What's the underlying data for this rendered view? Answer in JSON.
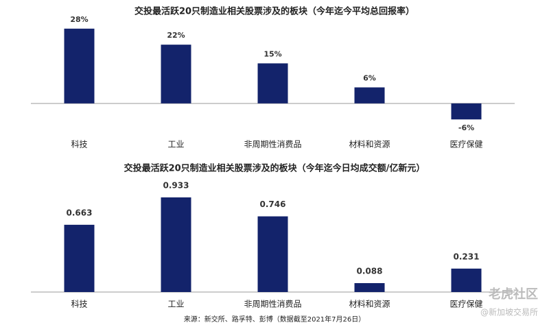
{
  "chart_data": [
    {
      "type": "bar",
      "title": "交投最活跃20只制造业相关股票涉及的板块（今年迄今平均总回报率）",
      "categories": [
        "科技",
        "工业",
        "非周期性消费品",
        "材料和资源",
        "医疗保健"
      ],
      "values": [
        28,
        22,
        15,
        6,
        -6
      ],
      "value_labels": [
        "28%",
        "22%",
        "15%",
        "6%",
        "-6%"
      ],
      "color": "#13236b",
      "ylim": [
        -8,
        30
      ]
    },
    {
      "type": "bar",
      "title": "交投最活跃20只制造业相关股票涉及的板块（今年迄今日均成交额/亿新元）",
      "categories": [
        "科技",
        "工业",
        "非周期性消费品",
        "材料和资源",
        "医疗保健"
      ],
      "values": [
        0.663,
        0.933,
        0.746,
        0.088,
        0.231
      ],
      "color": "#13236b",
      "ylim": [
        0,
        1.0
      ]
    }
  ],
  "source": "来源：新交所、路孚特、彭博（数据截至2021年7月26日）",
  "watermark": [
    "老虎社区",
    "@新加坡交易所"
  ]
}
